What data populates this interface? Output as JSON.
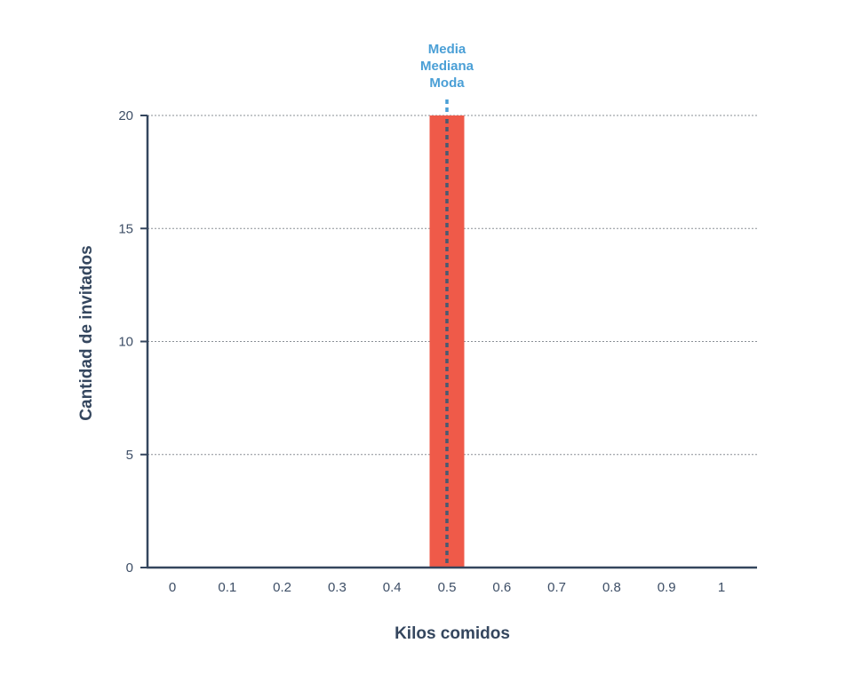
{
  "chart_data": {
    "type": "bar",
    "xlabel": "Kilos comidos",
    "ylabel": "Cantidad de invitados",
    "x_ticks": [
      "0",
      "0.1",
      "0.2",
      "0.3",
      "0.4",
      "0.5",
      "0.6",
      "0.7",
      "0.8",
      "0.9",
      "1"
    ],
    "y_ticks": [
      "0",
      "5",
      "10",
      "15",
      "20"
    ],
    "xlim": [
      0,
      1
    ],
    "ylim": [
      0,
      20
    ],
    "grid": "horizontal dotted",
    "bars": [
      {
        "x": 0.5,
        "value": 20
      }
    ],
    "reference_line": {
      "x": 0.5,
      "style": "dashed",
      "labels": [
        "Media",
        "Mediana",
        "Moda"
      ]
    },
    "colors": {
      "bar": "#ef5a49",
      "axis": "#34465e",
      "grid": "#8a8f96",
      "reference": "#4a9fd6",
      "reference_on_bar": "#4a5a70"
    }
  }
}
